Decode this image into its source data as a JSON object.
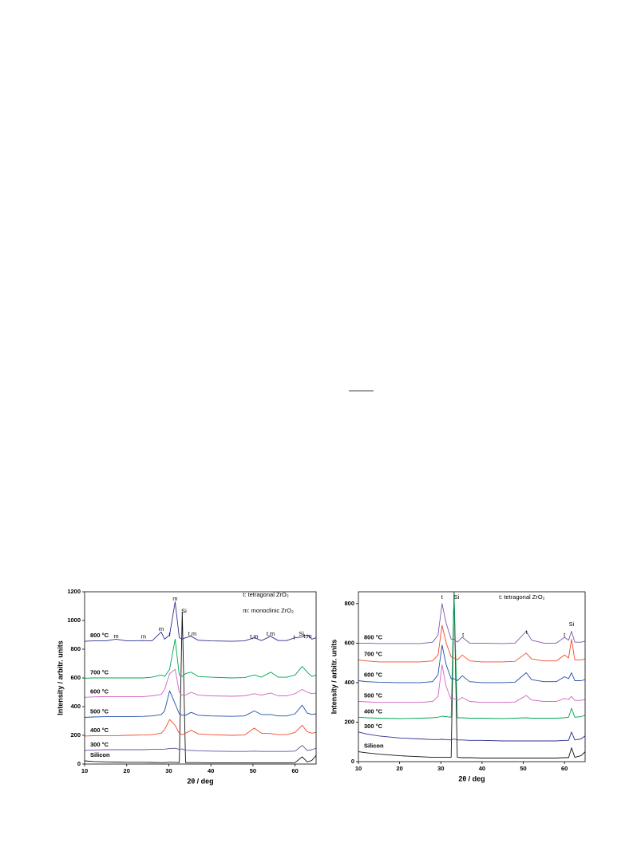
{
  "chart_data": [
    {
      "type": "line",
      "ylabel": "Intensity / arbitr. units",
      "xlabel": "2θ / deg",
      "xlim": [
        10,
        65
      ],
      "xticks": [
        10,
        20,
        30,
        40,
        50,
        60
      ],
      "ylim": [
        0,
        1200
      ],
      "yticks": [
        0,
        200,
        400,
        600,
        800,
        1000,
        1200
      ],
      "x": [
        10,
        12,
        15,
        17.5,
        20,
        24,
        26,
        28.2,
        29,
        30.2,
        31.5,
        32.5,
        33.2,
        34,
        35.3,
        37,
        40,
        45,
        48,
        50.3,
        52,
        54.2,
        56,
        58,
        60,
        61.7,
        62.9,
        64,
        65
      ],
      "series": [
        {
          "name": "Silicon",
          "color": "#111111",
          "values": [
            22,
            18,
            15,
            14,
            12,
            12,
            11,
            10,
            10,
            12,
            12,
            10,
            1060,
            10,
            10,
            10,
            9,
            8,
            8,
            9,
            9,
            9,
            9,
            9,
            10,
            50,
            15,
            25,
            60
          ]
        },
        {
          "name": "300 °C",
          "color": "#6a4fa0",
          "values": [
            95,
            98,
            100,
            100,
            100,
            100,
            102,
            103,
            104,
            108,
            110,
            102,
            105,
            96,
            95,
            92,
            90,
            88,
            88,
            90,
            88,
            88,
            88,
            88,
            90,
            130,
            95,
            100,
            110
          ]
        },
        {
          "name": "400 °C",
          "color": "#ef4b2a",
          "values": [
            195,
            197,
            198,
            198,
            200,
            202,
            205,
            215,
            240,
            310,
            270,
            215,
            205,
            215,
            235,
            210,
            205,
            200,
            202,
            250,
            215,
            212,
            205,
            205,
            220,
            270,
            225,
            215,
            220
          ]
        },
        {
          "name": "500 °C",
          "color": "#1f4fa8",
          "values": [
            325,
            328,
            330,
            330,
            330,
            332,
            335,
            345,
            370,
            510,
            420,
            350,
            340,
            340,
            360,
            340,
            335,
            332,
            335,
            370,
            345,
            345,
            335,
            335,
            350,
            410,
            355,
            345,
            350
          ]
        },
        {
          "name": "600 °C",
          "color": "#d462c5",
          "values": [
            465,
            468,
            470,
            470,
            470,
            470,
            475,
            485,
            520,
            630,
            660,
            500,
            480,
            480,
            500,
            480,
            475,
            472,
            475,
            490,
            480,
            495,
            475,
            475,
            490,
            520,
            500,
            490,
            495
          ]
        },
        {
          "name": "700 °C",
          "color": "#00a651",
          "values": [
            598,
            600,
            600,
            600,
            600,
            600,
            605,
            620,
            610,
            660,
            870,
            620,
            610,
            630,
            640,
            610,
            605,
            600,
            602,
            620,
            605,
            640,
            605,
            605,
            620,
            680,
            640,
            610,
            620
          ]
        },
        {
          "name": "800 °C",
          "color": "#2e3192",
          "values": [
            855,
            858,
            858,
            870,
            858,
            860,
            858,
            920,
            870,
            900,
            1130,
            880,
            870,
            880,
            890,
            862,
            858,
            855,
            858,
            880,
            860,
            890,
            860,
            860,
            880,
            885,
            900,
            870,
            880
          ]
        }
      ],
      "annotations": [
        {
          "text": "m",
          "x": 31.5,
          "y": 1150
        },
        {
          "text": "Si",
          "x": 33.6,
          "y": 1065
        },
        {
          "text": "t",
          "x": 30.2,
          "y": 900
        },
        {
          "text": "m",
          "x": 28.2,
          "y": 940
        },
        {
          "text": "t,m",
          "x": 35.6,
          "y": 905
        },
        {
          "text": "m",
          "x": 17.5,
          "y": 890
        },
        {
          "text": "m",
          "x": 24,
          "y": 885
        },
        {
          "text": "t,m",
          "x": 50.3,
          "y": 885
        },
        {
          "text": "t,m",
          "x": 54.2,
          "y": 905
        },
        {
          "text": "t",
          "x": 59.8,
          "y": 880
        },
        {
          "text": "Si",
          "x": 61.5,
          "y": 905
        },
        {
          "text": "t,m",
          "x": 63,
          "y": 890
        },
        {
          "text": "t: tetragonal ZrO₂",
          "x": 47.6,
          "y": 1178
        },
        {
          "text": "m: monoclinic ZrO₂",
          "x": 47.6,
          "y": 1067
        }
      ]
    },
    {
      "type": "line",
      "ylabel": "Intensity / arbitr. units",
      "xlabel": "2θ / deg",
      "xlim": [
        10,
        65
      ],
      "xticks": [
        10,
        20,
        30,
        40,
        50,
        60
      ],
      "ylim": [
        0,
        860
      ],
      "yticks": [
        0,
        200,
        400,
        600,
        800
      ],
      "x": [
        10,
        12,
        15,
        20,
        25,
        28,
        29.3,
        30.3,
        31.3,
        32.5,
        33.2,
        34,
        35.2,
        37,
        40,
        45,
        48,
        50.7,
        52,
        55,
        58,
        60,
        61,
        61.7,
        62.5,
        64,
        65
      ],
      "series": [
        {
          "name": "Silicon",
          "color": "#111111",
          "values": [
            50,
            45,
            38,
            30,
            25,
            22,
            22,
            22,
            22,
            22,
            860,
            22,
            20,
            20,
            18,
            18,
            18,
            18,
            18,
            18,
            18,
            20,
            20,
            70,
            22,
            30,
            50
          ]
        },
        {
          "name": "300 °C",
          "color": "#2e3192",
          "values": [
            150,
            140,
            130,
            120,
            115,
            112,
            112,
            113,
            112,
            110,
            115,
            110,
            110,
            108,
            108,
            105,
            105,
            105,
            105,
            105,
            105,
            108,
            108,
            150,
            110,
            115,
            130
          ]
        },
        {
          "name": "400 °C",
          "color": "#00a651",
          "values": [
            225,
            222,
            220,
            218,
            220,
            222,
            225,
            230,
            228,
            225,
            860,
            222,
            222,
            220,
            220,
            218,
            220,
            222,
            220,
            220,
            220,
            222,
            225,
            270,
            225,
            228,
            235
          ]
        },
        {
          "name": "500 °C",
          "color": "#d462c5",
          "values": [
            305,
            303,
            300,
            300,
            300,
            305,
            330,
            490,
            380,
            315,
            320,
            310,
            325,
            305,
            300,
            300,
            302,
            335,
            312,
            305,
            305,
            320,
            315,
            330,
            310,
            310,
            315
          ]
        },
        {
          "name": "600 °C",
          "color": "#1f4fa8",
          "values": [
            410,
            405,
            402,
            400,
            400,
            405,
            440,
            590,
            490,
            420,
            420,
            410,
            435,
            405,
            400,
            400,
            402,
            450,
            415,
            405,
            405,
            430,
            420,
            450,
            410,
            410,
            415
          ]
        },
        {
          "name": "700 °C",
          "color": "#ef4b2a",
          "values": [
            515,
            510,
            505,
            505,
            505,
            510,
            540,
            690,
            600,
            530,
            525,
            515,
            540,
            510,
            505,
            505,
            508,
            550,
            520,
            510,
            510,
            540,
            525,
            620,
            515,
            515,
            520
          ]
        },
        {
          "name": "800 °C",
          "color": "#7b57a8",
          "values": [
            600,
            600,
            598,
            598,
            598,
            605,
            640,
            800,
            700,
            620,
            620,
            605,
            630,
            600,
            600,
            598,
            600,
            660,
            615,
            600,
            600,
            630,
            615,
            660,
            605,
            605,
            610
          ]
        }
      ],
      "annotations": [
        {
          "text": "t",
          "x": 30.3,
          "y": 832
        },
        {
          "text": "Si",
          "x": 33.8,
          "y": 832
        },
        {
          "text": "t",
          "x": 35.4,
          "y": 640
        },
        {
          "text": "t",
          "x": 50.8,
          "y": 655
        },
        {
          "text": "t",
          "x": 60,
          "y": 640
        },
        {
          "text": "Si",
          "x": 61.7,
          "y": 695
        },
        {
          "text": "t: tetragonal ZrO₂",
          "x": 44.1,
          "y": 832
        }
      ]
    }
  ]
}
